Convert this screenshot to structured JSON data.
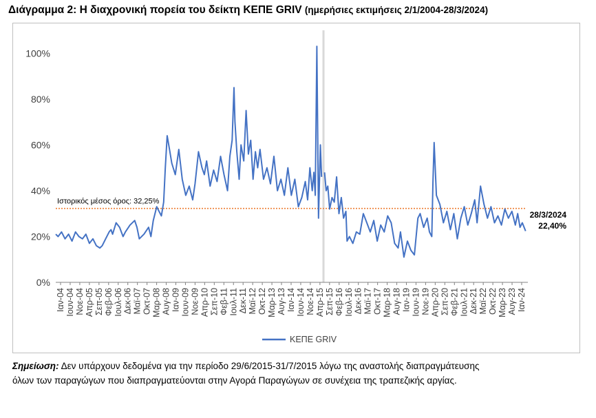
{
  "header": {
    "title_main": "Διάγραμμα 2: Η διαχρονική πορεία του δείκτη ΚΕΠΕ GRIV",
    "title_sub": "(ημερήσιες εκτιμήσεις 2/1/2004-28/3/2024)"
  },
  "footnote": {
    "label": "Σημείωση:",
    "line1": "Δεν υπάρχουν δεδομένα για την περίοδο 29/6/2015-31/7/2015 λόγω της αναστολής διαπραγμάτευσης",
    "line2": "όλων των παραγώγων που διαπραγματεύονται στην Αγορά Παραγώγων σε συνέχεια της τραπεζικής αργίας."
  },
  "chart_data": {
    "type": "line",
    "xlabel": "",
    "ylabel": "",
    "ylim": [
      0,
      110
    ],
    "yticks": [
      0,
      20,
      40,
      60,
      80,
      100
    ],
    "ytick_labels": [
      "0%",
      "20%",
      "40%",
      "60%",
      "80%",
      "100%"
    ],
    "xlim": [
      2004.0,
      2024.25
    ],
    "x_tick_labels": [
      "Ιαν-04",
      "Ιουν-04",
      "Νοε-04",
      "Απρ-05",
      "Σεπ-05",
      "Φεβ-06",
      "Ιουλ-06",
      "Δεκ-06",
      "Μαϊ-07",
      "Οκτ-07",
      "Μαρ-08",
      "Αυγ-08",
      "Ιαν-09",
      "Ιουν-09",
      "Νοε-09",
      "Απρ-10",
      "Σεπ-10",
      "Φεβ-11",
      "Ιουλ-11",
      "Δεκ-11",
      "Μαϊ-12",
      "Οκτ-12",
      "Μαρ-13",
      "Αυγ-13",
      "Ιαν-14",
      "Ιουν-14",
      "Νοε-14",
      "Απρ-15",
      "Σεπ-15",
      "Φεβ-16",
      "Ιουλ-16",
      "Δεκ-16",
      "Μαϊ-17",
      "Οκτ-17",
      "Μαρ-18",
      "Αυγ-18",
      "Ιαν-19",
      "Ιουν-19",
      "Νοε-19",
      "Απρ-20",
      "Σεπ-20",
      "Φεβ-21",
      "Ιουλ-21",
      "Δεκ-21",
      "Μαϊ-22",
      "Οκτ-22",
      "Μαρ-23",
      "Αυγ-23",
      "Ιαν-24"
    ],
    "legend": {
      "placement": "bottom-center",
      "entries": [
        "ΚΕΠΕ GRIV"
      ]
    },
    "series": [
      {
        "name": "ΚΕΠΕ GRIV",
        "color": "#4472c4",
        "x": [
          2004.0,
          2004.1,
          2004.25,
          2004.4,
          2004.55,
          2004.7,
          2004.85,
          2005.0,
          2005.15,
          2005.3,
          2005.45,
          2005.6,
          2005.75,
          2005.9,
          2006.0,
          2006.15,
          2006.3,
          2006.38,
          2006.45,
          2006.6,
          2006.75,
          2006.9,
          2007.0,
          2007.2,
          2007.4,
          2007.5,
          2007.6,
          2007.8,
          2008.0,
          2008.1,
          2008.2,
          2008.35,
          2008.45,
          2008.55,
          2008.65,
          2008.72,
          2008.8,
          2008.9,
          2009.0,
          2009.15,
          2009.3,
          2009.45,
          2009.6,
          2009.75,
          2009.9,
          2010.0,
          2010.15,
          2010.3,
          2010.4,
          2010.5,
          2010.65,
          2010.8,
          2010.95,
          2011.1,
          2011.25,
          2011.4,
          2011.5,
          2011.6,
          2011.68,
          2011.72,
          2011.8,
          2011.9,
          2011.98,
          2012.1,
          2012.2,
          2012.3,
          2012.4,
          2012.5,
          2012.6,
          2012.7,
          2012.8,
          2012.95,
          2013.1,
          2013.25,
          2013.4,
          2013.55,
          2013.7,
          2013.85,
          2014.0,
          2014.15,
          2014.3,
          2014.45,
          2014.6,
          2014.75,
          2014.85,
          2014.95,
          2015.05,
          2015.12,
          2015.18,
          2015.25,
          2015.32,
          2015.4,
          2015.45
        ],
        "values": [
          21,
          20,
          22,
          19,
          21,
          18,
          22,
          20,
          19,
          21,
          17,
          19,
          16,
          15,
          16,
          19,
          22,
          23,
          21,
          26,
          24,
          20,
          22,
          25,
          27,
          24,
          19,
          21,
          24,
          20,
          27,
          33,
          31,
          29,
          35,
          50,
          64,
          58,
          52,
          47,
          58,
          45,
          38,
          42,
          36,
          43,
          57,
          50,
          47,
          53,
          42,
          49,
          44,
          55,
          47,
          40,
          55,
          62,
          85,
          70,
          57,
          45,
          60,
          53,
          75,
          56,
          62,
          45,
          57,
          50,
          58,
          45,
          50,
          43,
          55,
          40,
          45,
          38,
          50,
          38,
          45,
          33,
          37,
          44,
          36,
          50,
          40,
          48,
          38,
          103,
          28,
          60,
          46
        ],
        "x2": [
          2015.58,
          2015.65,
          2015.72,
          2015.8,
          2015.9,
          2016.0,
          2016.1,
          2016.2,
          2016.3,
          2016.4,
          2016.5,
          2016.55,
          2016.65,
          2016.8,
          2016.95,
          2017.1,
          2017.25,
          2017.4,
          2017.55,
          2017.7,
          2017.85,
          2018.0,
          2018.15,
          2018.3,
          2018.45,
          2018.6,
          2018.75,
          2018.85,
          2019.0,
          2019.15,
          2019.3,
          2019.45,
          2019.6,
          2019.7,
          2019.85,
          2020.0,
          2020.1,
          2020.2,
          2020.25,
          2020.3,
          2020.4,
          2020.55,
          2020.7,
          2020.85,
          2021.0,
          2021.15,
          2021.3,
          2021.45,
          2021.6,
          2021.75,
          2021.9,
          2022.05,
          2022.15,
          2022.3,
          2022.45,
          2022.6,
          2022.75,
          2022.9,
          2023.05,
          2023.2,
          2023.35,
          2023.5,
          2023.65,
          2023.8,
          2023.9,
          2024.0,
          2024.1,
          2024.24
        ],
        "values2": [
          48,
          40,
          42,
          32,
          37,
          35,
          46,
          30,
          37,
          28,
          31,
          18,
          20,
          17,
          22,
          21,
          30,
          26,
          22,
          27,
          18,
          25,
          22,
          29,
          26,
          17,
          15,
          22,
          11,
          18,
          14,
          12,
          28,
          30,
          24,
          28,
          22,
          20,
          44,
          61,
          38,
          34,
          26,
          31,
          23,
          30,
          19,
          28,
          33,
          25,
          30,
          36,
          26,
          42,
          34,
          28,
          33,
          26,
          29,
          25,
          32,
          28,
          31,
          25,
          30,
          24,
          26,
          22.4
        ]
      }
    ],
    "mean_line": {
      "value": 32.25,
      "label": "Ιστορικός μέσος όρος: 32,25%",
      "color": "#ed7d31"
    },
    "gap_band": {
      "from": 2015.49,
      "to": 2015.58,
      "color": "#d9d9d9"
    },
    "end_annotation": {
      "date": "28/3/2024",
      "value_label": "22,40%"
    }
  }
}
